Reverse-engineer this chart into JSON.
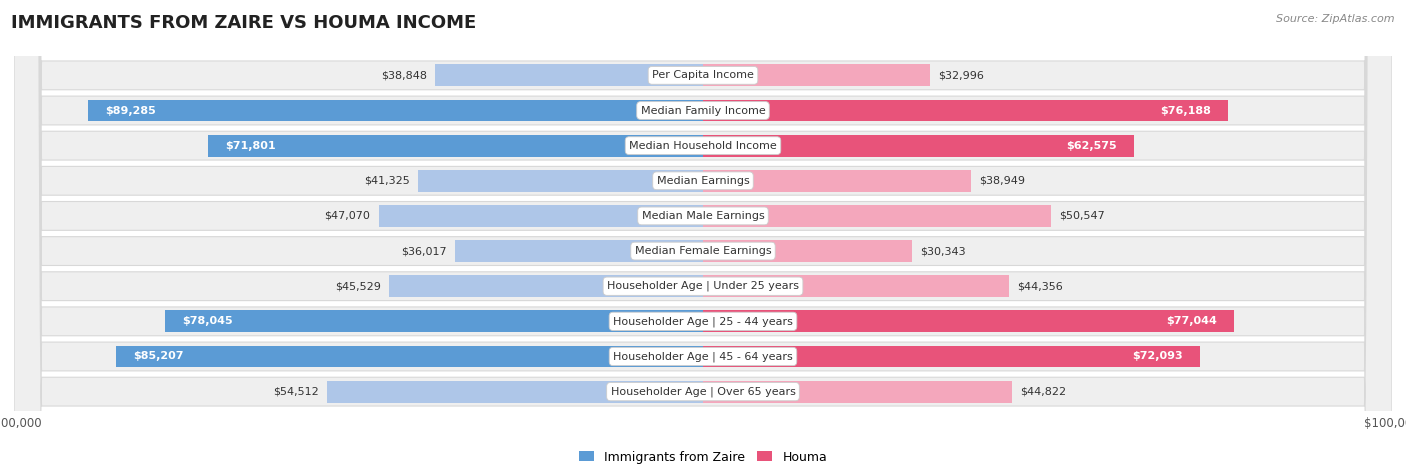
{
  "title": "IMMIGRANTS FROM ZAIRE VS HOUMA INCOME",
  "source": "Source: ZipAtlas.com",
  "categories": [
    "Per Capita Income",
    "Median Family Income",
    "Median Household Income",
    "Median Earnings",
    "Median Male Earnings",
    "Median Female Earnings",
    "Householder Age | Under 25 years",
    "Householder Age | 25 - 44 years",
    "Householder Age | 45 - 64 years",
    "Householder Age | Over 65 years"
  ],
  "zaire_values": [
    38848,
    89285,
    71801,
    41325,
    47070,
    36017,
    45529,
    78045,
    85207,
    54512
  ],
  "houma_values": [
    32996,
    76188,
    62575,
    38949,
    50547,
    30343,
    44356,
    77044,
    72093,
    44822
  ],
  "zaire_color_light": "#aec6e8",
  "zaire_color_dark": "#5b9bd5",
  "houma_color_light": "#f4a7bc",
  "houma_color_dark": "#e8537a",
  "max_value": 100000,
  "background_color": "#ffffff",
  "row_bg": "#efefef",
  "bar_height": 0.62,
  "inside_threshold": 55000,
  "zaire_label": "Immigrants from Zaire",
  "houma_label": "Houma",
  "title_fontsize": 13,
  "label_fontsize": 8,
  "value_fontsize": 8
}
